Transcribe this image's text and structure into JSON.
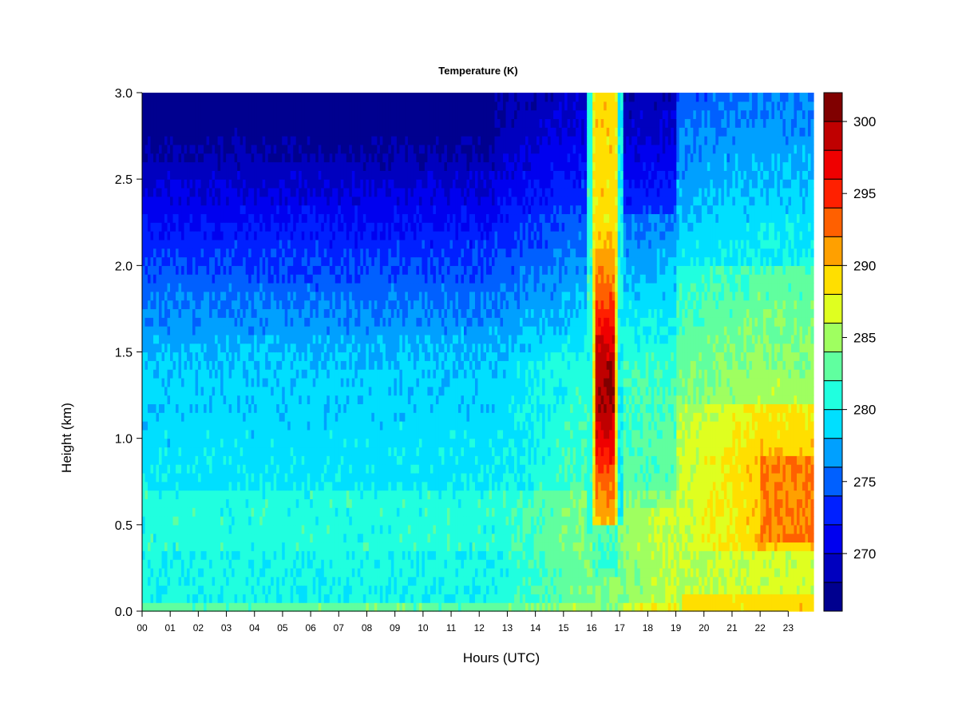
{
  "chart_data": {
    "type": "heatmap",
    "title": "Temperature (K)",
    "xlabel": "Hours (UTC)",
    "ylabel": "Height (km)",
    "xlim": [
      0,
      23.9
    ],
    "ylim": [
      0,
      3.0
    ],
    "x_ticks": [
      "00",
      "01",
      "02",
      "03",
      "04",
      "05",
      "06",
      "07",
      "08",
      "09",
      "10",
      "11",
      "12",
      "13",
      "14",
      "15",
      "16",
      "17",
      "18",
      "19",
      "20",
      "21",
      "22",
      "23"
    ],
    "y_ticks": [
      "0.0",
      "0.5",
      "1.0",
      "1.5",
      "2.0",
      "2.5",
      "3.0"
    ],
    "y_tick_values": [
      0,
      0.5,
      1.0,
      1.5,
      2.0,
      2.5,
      3.0
    ],
    "colorbar": {
      "label_ticks": [
        270,
        275,
        280,
        285,
        290,
        295,
        300
      ],
      "range": [
        266,
        302
      ],
      "levels": [
        {
          "from": 266,
          "to": 268,
          "color": "#00008f"
        },
        {
          "from": 268,
          "to": 270,
          "color": "#0000bf"
        },
        {
          "from": 270,
          "to": 272,
          "color": "#0000ef"
        },
        {
          "from": 272,
          "to": 274,
          "color": "#0020ff"
        },
        {
          "from": 274,
          "to": 276,
          "color": "#0060ff"
        },
        {
          "from": 276,
          "to": 278,
          "color": "#00a0ff"
        },
        {
          "from": 278,
          "to": 280,
          "color": "#00dfff"
        },
        {
          "from": 280,
          "to": 282,
          "color": "#20ffdf"
        },
        {
          "from": 282,
          "to": 284,
          "color": "#60ff9f"
        },
        {
          "from": 284,
          "to": 286,
          "color": "#9fff60"
        },
        {
          "from": 286,
          "to": 288,
          "color": "#dfff20"
        },
        {
          "from": 288,
          "to": 290,
          "color": "#ffdf00"
        },
        {
          "from": 290,
          "to": 292,
          "color": "#ffa000"
        },
        {
          "from": 292,
          "to": 294,
          "color": "#ff6000"
        },
        {
          "from": 294,
          "to": 296,
          "color": "#ff2000"
        },
        {
          "from": 296,
          "to": 298,
          "color": "#ef0000"
        },
        {
          "from": 298,
          "to": 300,
          "color": "#bf0000"
        },
        {
          "from": 300,
          "to": 302,
          "color": "#800000"
        }
      ]
    },
    "features": [
      {
        "description_value": "warm column",
        "x_range": [
          16.0,
          16.95
        ],
        "y_range": [
          0.5,
          3.0
        ],
        "min_temp": 288,
        "max_temp": 301
      },
      {
        "description_value": "warm lower layer",
        "x_range": [
          19.0,
          23.9
        ],
        "y_range": [
          0,
          1.2
        ],
        "max_temp": 294
      }
    ]
  }
}
